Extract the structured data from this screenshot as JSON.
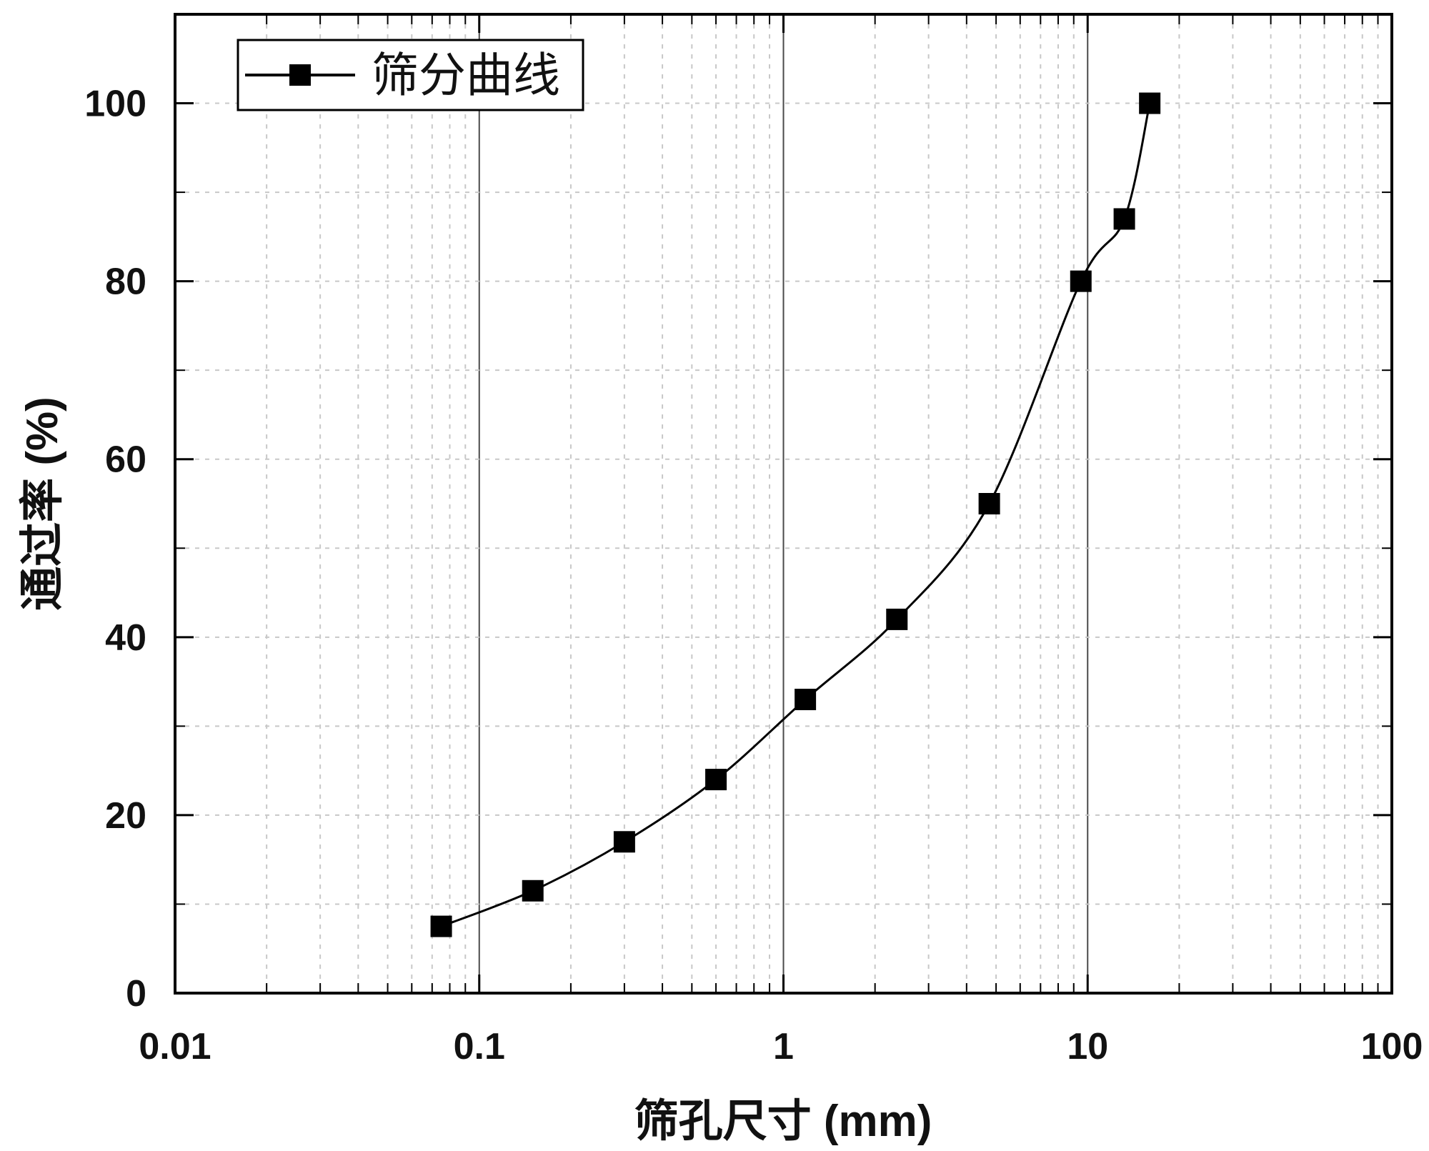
{
  "chart_data": {
    "type": "line",
    "title": "",
    "xlabel": "筛孔尺寸 (mm)",
    "ylabel": "通过率 (%)",
    "xscale": "log",
    "xlim": [
      0.01,
      100
    ],
    "ylim": [
      0,
      110
    ],
    "x_ticks": [
      0.01,
      0.1,
      1,
      10,
      100
    ],
    "x_tick_labels": [
      "0.01",
      "0.1",
      "1",
      "10",
      "100"
    ],
    "y_ticks": [
      0,
      20,
      40,
      60,
      80,
      100
    ],
    "y_tick_labels": [
      "0",
      "20",
      "40",
      "60",
      "80",
      "100"
    ],
    "grid": true,
    "legend_position": "top-left",
    "series": [
      {
        "name": "筛分曲线",
        "color": "#000000",
        "marker": "square",
        "x": [
          0.075,
          0.15,
          0.3,
          0.6,
          1.18,
          2.36,
          4.75,
          9.5,
          13.2,
          16
        ],
        "y": [
          7.5,
          11.5,
          17,
          24,
          33,
          42,
          55,
          80,
          87,
          100
        ]
      }
    ]
  }
}
